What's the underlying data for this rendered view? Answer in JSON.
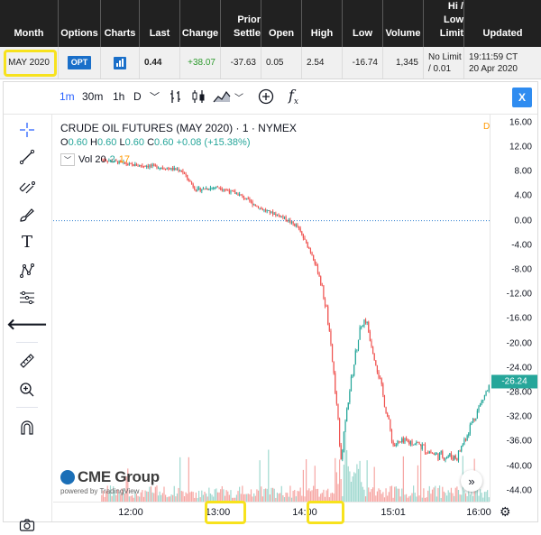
{
  "table": {
    "headers": {
      "month": "Month",
      "options": "Options",
      "charts": "Charts",
      "last": "Last",
      "change": "Change",
      "prior_settle_1": "Prior",
      "prior_settle_2": "Settle",
      "open": "Open",
      "high": "High",
      "low": "Low",
      "volume": "Volume",
      "hilo_1": "Hi /",
      "hilo_2": "Low",
      "hilo_3": "Limit",
      "updated": "Updated"
    },
    "row": {
      "month": "MAY 2020",
      "options": "OPT",
      "last": "0.44",
      "change": "+38.07",
      "prior_settle": "-37.63",
      "open": "0.05",
      "high": "2.54",
      "low": "-16.74",
      "volume": "1,345",
      "limit_1": "No Limit",
      "limit_2": "/ 0.01",
      "updated_1": "19:11:59 CT",
      "updated_2": "20 Apr 2020"
    }
  },
  "toolbar": {
    "intervals": [
      "1m",
      "30m",
      "1h",
      "D"
    ],
    "close_label": "X",
    "fx_label": "f",
    "fx_sub": "x"
  },
  "legend": {
    "title": "CRUDE OIL FUTURES (MAY 2020) · 1 · NYMEX",
    "o_key": "O",
    "o_val": "0.60",
    "h_key": "H",
    "h_val": "0.60",
    "l_key": "L",
    "l_val": "0.60",
    "c_key": "C",
    "c_val": "0.60",
    "chg": "+0.08 (+15.38%)",
    "vol_label": "Vol 20",
    "vol_a": "2",
    "vol_b": "17",
    "d_marker": "D"
  },
  "logo": {
    "brand": "CME Group",
    "powered": "powered by TradingView"
  },
  "colors": {
    "up": "#26a69a",
    "down": "#ef5350",
    "vol_up": "#9fd8cf",
    "vol_down": "#f6a6a3",
    "highlight": "#f7e21d",
    "accent": "#2962ff"
  },
  "chart_data": {
    "type": "candlestick",
    "instrument": "CRUDE OIL FUTURES (MAY 2020)",
    "interval": "1",
    "exchange": "NYMEX",
    "y_ticks": [
      "16.00",
      "12.00",
      "8.00",
      "4.00",
      "0.00",
      "-4.00",
      "-8.00",
      "-12.00",
      "-16.00",
      "-20.00",
      "-24.00",
      "-28.00",
      "-32.00",
      "-36.00",
      "-40.00",
      "-44.00"
    ],
    "ylim": [
      -45.5,
      17
    ],
    "last_price": "-26.24",
    "x_ticks": [
      "12:00",
      "13:00",
      "14:00",
      "15:01",
      "16:00"
    ],
    "zero_line": 0,
    "price_path": [
      {
        "t": "11:40",
        "p": 10.0
      },
      {
        "t": "11:50",
        "p": 9.6
      },
      {
        "t": "12:00",
        "p": 9.1
      },
      {
        "t": "12:15",
        "p": 8.9
      },
      {
        "t": "12:35",
        "p": 8.2
      },
      {
        "t": "12:45",
        "p": 5.0
      },
      {
        "t": "13:00",
        "p": 5.5
      },
      {
        "t": "13:15",
        "p": 4.2
      },
      {
        "t": "13:30",
        "p": 1.9
      },
      {
        "t": "13:45",
        "p": 0.6
      },
      {
        "t": "13:55",
        "p": -1.0
      },
      {
        "t": "14:05",
        "p": -5.5
      },
      {
        "t": "14:10",
        "p": -9.0
      },
      {
        "t": "14:15",
        "p": -14.5
      },
      {
        "t": "14:20",
        "p": -25.0
      },
      {
        "t": "14:25",
        "p": -38.5
      },
      {
        "t": "14:30",
        "p": -29.0
      },
      {
        "t": "14:38",
        "p": -17.5
      },
      {
        "t": "14:42",
        "p": -16.0
      },
      {
        "t": "14:50",
        "p": -24.0
      },
      {
        "t": "15:01",
        "p": -36.5
      },
      {
        "t": "15:15",
        "p": -36.0
      },
      {
        "t": "15:30",
        "p": -38.2
      },
      {
        "t": "15:45",
        "p": -38.5
      },
      {
        "t": "15:55",
        "p": -33.0
      },
      {
        "t": "16:05",
        "p": -28.0
      },
      {
        "t": "16:10",
        "p": -26.24
      }
    ]
  }
}
